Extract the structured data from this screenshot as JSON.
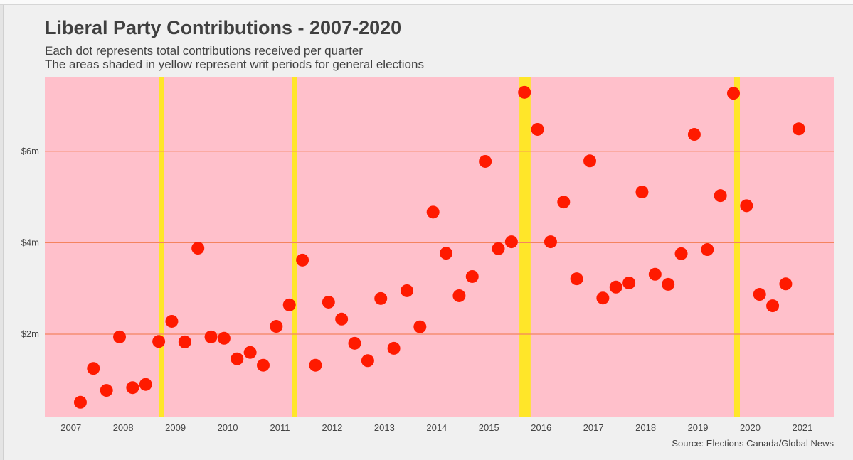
{
  "chart_data": {
    "type": "scatter",
    "title": "Liberal Party Contributions - 2007-2020",
    "subtitle": [
      "Each dot represents total contributions received per quarter",
      "The areas shaded in yellow represent writ periods for general elections"
    ],
    "source": "Source: Elections Canada/Global News",
    "xlabel": "",
    "ylabel": "",
    "x_ticks": [
      "2007",
      "2008",
      "2009",
      "2010",
      "2011",
      "2012",
      "2013",
      "2014",
      "2015",
      "2016",
      "2017",
      "2018",
      "2019",
      "2020",
      "2021"
    ],
    "y_ticks": [
      {
        "value": 2,
        "label": "$2m"
      },
      {
        "value": 4,
        "label": "$4m"
      },
      {
        "value": 6,
        "label": "$6m"
      }
    ],
    "xlim": [
      2006.5,
      2021.6
    ],
    "ylim": [
      0.18,
      7.63
    ],
    "grid": "horizontal",
    "colors": {
      "background": "#ffc0cb",
      "grid": "#f4845f",
      "dot": "#ff1a00",
      "writ": "#ffe629"
    },
    "writ_periods": [
      {
        "start": "2008-09-07",
        "end": "2008-10-14"
      },
      {
        "start": "2011-03-26",
        "end": "2011-05-02"
      },
      {
        "start": "2015-08-02",
        "end": "2015-10-19"
      },
      {
        "start": "2019-09-11",
        "end": "2019-10-21"
      }
    ],
    "quarters_start": 2007,
    "values": [
      0.51,
      1.25,
      0.77,
      1.94,
      0.83,
      0.9,
      1.84,
      2.28,
      1.83,
      3.88,
      1.94,
      1.91,
      1.46,
      1.6,
      1.32,
      2.17,
      2.64,
      3.62,
      1.32,
      2.7,
      2.33,
      1.8,
      1.42,
      2.78,
      1.69,
      2.95,
      2.16,
      4.67,
      3.77,
      2.84,
      3.26,
      5.78,
      3.87,
      4.02,
      7.29,
      6.48,
      4.02,
      4.89,
      3.21,
      5.79,
      2.79,
      3.03,
      3.12,
      5.11,
      3.31,
      3.09,
      3.76,
      6.37,
      3.85,
      5.03,
      7.27,
      4.81,
      2.87,
      2.62,
      3.1,
      6.49
    ]
  }
}
